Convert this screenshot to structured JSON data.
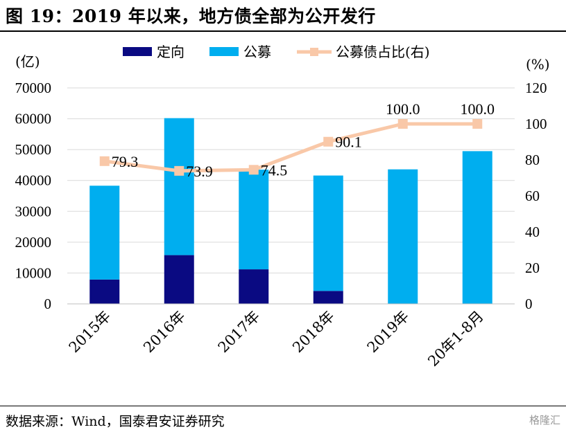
{
  "title": "图 19：2019 年以来，地方债全部为公开发行",
  "source": "数据来源：Wind，国泰君安证券研究",
  "watermark": "格隆汇",
  "colors": {
    "private": "#0a0a82",
    "public": "#00aeef",
    "ratio": "#f9c8a8"
  },
  "chart_data": {
    "type": "bar",
    "stacked": true,
    "categories": [
      "2015年",
      "2016年",
      "2017年",
      "2018年",
      "2019年",
      "20年1-8月"
    ],
    "series": [
      {
        "name": "定向",
        "values": [
          7900,
          15800,
          11200,
          4200,
          0,
          0
        ]
      },
      {
        "name": "公募",
        "values": [
          30400,
          44400,
          32300,
          37400,
          43600,
          49500
        ]
      }
    ],
    "line_series": {
      "name": "公募债占比(右)",
      "values": [
        79.3,
        73.9,
        74.5,
        90.1,
        100.0,
        100.0
      ],
      "labels": [
        "79.3",
        "73.9",
        "74.5",
        "90.1",
        "100.0",
        "100.0"
      ]
    },
    "y_left_unit": "(亿)",
    "y_right_unit": "(%)",
    "ylim_left": [
      0,
      70000
    ],
    "ylim_right": [
      0,
      120
    ],
    "y_left_ticks": [
      "0",
      "10000",
      "20000",
      "30000",
      "40000",
      "50000",
      "60000",
      "70000"
    ],
    "y_right_ticks": [
      "0",
      "20",
      "40",
      "60",
      "80",
      "100",
      "120"
    ],
    "grid": true,
    "legend_position": "top"
  }
}
